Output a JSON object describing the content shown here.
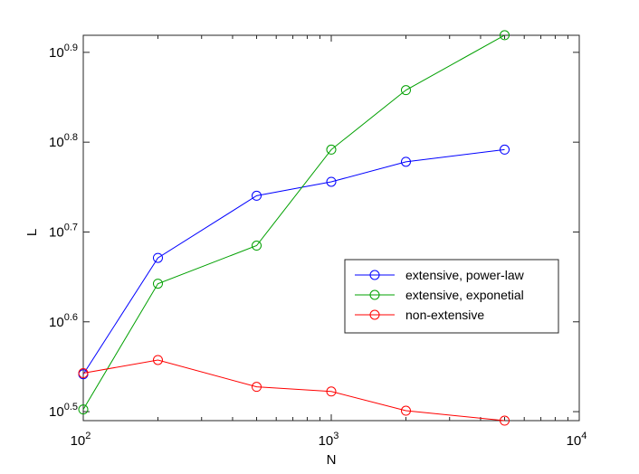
{
  "chart_data": {
    "type": "line",
    "title": "",
    "xlabel": "N",
    "ylabel": "L",
    "xscale": "log",
    "yscale": "log",
    "xlim": [
      100,
      10000
    ],
    "ylim_log10": [
      0.49,
      0.919
    ],
    "x_ticks": [
      {
        "base": "10",
        "exp": "2",
        "value": 100
      },
      {
        "base": "10",
        "exp": "3",
        "value": 1000
      },
      {
        "base": "10",
        "exp": "4",
        "value": 10000
      }
    ],
    "y_ticks": [
      {
        "base": "10",
        "exp": "0.5",
        "value": 0.5
      },
      {
        "base": "10",
        "exp": "0.6",
        "value": 0.6
      },
      {
        "base": "10",
        "exp": "0.7",
        "value": 0.7
      },
      {
        "base": "10",
        "exp": "0.8",
        "value": 0.8
      },
      {
        "base": "10",
        "exp": "0.9",
        "value": 0.9
      }
    ],
    "x": [
      100,
      200,
      500,
      1000,
      2000,
      5000
    ],
    "series": [
      {
        "name": "extensive, power-law",
        "color": "#0000ff",
        "values": [
          3.48,
          4.69,
          5.5,
          5.7,
          6.0,
          6.19
        ]
      },
      {
        "name": "extensive, exponetial",
        "color": "#00a000",
        "values": [
          3.18,
          4.39,
          4.84,
          6.19,
          7.21,
          8.3
        ]
      },
      {
        "name": "non-extensive",
        "color": "#ff0000",
        "values": [
          3.49,
          3.61,
          3.37,
          3.33,
          3.17,
          3.09
        ]
      }
    ],
    "grid": false,
    "legend_position": "center-right"
  }
}
